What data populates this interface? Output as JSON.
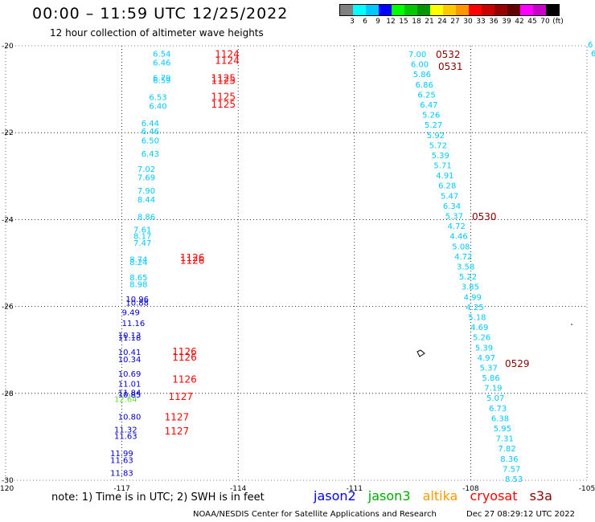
{
  "header": {
    "title": "00:00 – 11:59 UTC 12/25/2022",
    "subtitle": "12 hour collection of altimeter wave heights"
  },
  "legend": {
    "colors": [
      "#808080",
      "#00ffff",
      "#00c8ff",
      "#0000ff",
      "#00ff00",
      "#00c800",
      "#009600",
      "#ffff00",
      "#ffc800",
      "#ff9600",
      "#ff0000",
      "#c80000",
      "#960000",
      "#640000",
      "#ff00ff",
      "#c800c8",
      "#000000"
    ],
    "labels": [
      "3",
      "6",
      "9",
      "12",
      "15",
      "18",
      "21",
      "24",
      "27",
      "30",
      "33",
      "36",
      "39",
      "42",
      "45",
      "70",
      "(ft)"
    ]
  },
  "axes": {
    "lat_labels": [
      {
        "value": "-20",
        "lat": -20
      },
      {
        "value": "-22",
        "lat": -22
      },
      {
        "value": "-24",
        "lat": -24
      },
      {
        "value": "-26",
        "lat": -26
      },
      {
        "value": "-28",
        "lat": -28
      },
      {
        "value": "-30",
        "lat": -30
      }
    ],
    "lon_labels": [
      {
        "value": "-120",
        "lon": -120
      },
      {
        "value": "-117",
        "lon": -117
      },
      {
        "value": "-114",
        "lon": -114
      },
      {
        "value": "-111",
        "lon": -111
      },
      {
        "value": "-108",
        "lon": -108
      },
      {
        "value": "-105",
        "lon": -105
      }
    ]
  },
  "time_color": "#ff0000",
  "time_color_dark": "#8b0000",
  "track_a": [
    {
      "v": "6.54",
      "c": "#00c8ff"
    },
    {
      "v": "6.46",
      "c": "#00c8ff"
    },
    {
      "v": "6.79",
      "c": "#00c8ff"
    },
    {
      "v": "6.59",
      "c": "#00c8ff"
    },
    {
      "v": "6.53",
      "c": "#00c8ff"
    },
    {
      "v": "6.40",
      "c": "#00c8ff"
    },
    {
      "v": "6.44",
      "c": "#00c8ff"
    },
    {
      "v": "6.46",
      "c": "#00c8ff"
    },
    {
      "v": "6.50",
      "c": "#00c8ff"
    },
    {
      "v": "6.43",
      "c": "#00c8ff"
    },
    {
      "v": "7.02",
      "c": "#00c8ff"
    },
    {
      "v": "7.69",
      "c": "#00c8ff"
    },
    {
      "v": "7.90",
      "c": "#00c8ff"
    },
    {
      "v": "8.44",
      "c": "#00c8ff"
    },
    {
      "v": "8.86",
      "c": "#00c8ff"
    },
    {
      "v": "7.61",
      "c": "#00c8ff"
    },
    {
      "v": "8.17",
      "c": "#00c8ff"
    },
    {
      "v": "7.47",
      "c": "#00c8ff"
    },
    {
      "v": "8.74",
      "c": "#00c8ff"
    },
    {
      "v": "8.24",
      "c": "#00c8ff"
    },
    {
      "v": "8.65",
      "c": "#00c8ff"
    },
    {
      "v": "8.98",
      "c": "#00c8ff"
    },
    {
      "v": "10.96",
      "c": "#0000cd"
    },
    {
      "v": "10.88",
      "c": "#0000cd"
    },
    {
      "v": "9.49",
      "c": "#0000cd"
    },
    {
      "v": "11.16",
      "c": "#0000cd"
    },
    {
      "v": "10.13",
      "c": "#0000cd"
    },
    {
      "v": "11.18",
      "c": "#0000cd"
    },
    {
      "v": "10.41",
      "c": "#0000cd"
    },
    {
      "v": "10.34",
      "c": "#0000cd"
    },
    {
      "v": "10.69",
      "c": "#0000cd"
    },
    {
      "v": "11.01",
      "c": "#0000cd"
    },
    {
      "v": "11.84",
      "c": "#0000cd"
    },
    {
      "v": "10.85",
      "c": "#0000cd"
    },
    {
      "v": "12.64",
      "c": "#66dd33"
    },
    {
      "v": "10.80",
      "c": "#0000cd"
    },
    {
      "v": "11.32",
      "c": "#0000cd"
    },
    {
      "v": "11.63",
      "c": "#0000cd"
    },
    {
      "v": "11.99",
      "c": "#0000cd"
    },
    {
      "v": "11.63",
      "c": "#0000cd"
    },
    {
      "v": "11.83",
      "c": "#0000cd"
    }
  ],
  "track_a_times": [
    "1124",
    "1124",
    "1125",
    "1125",
    "1125",
    "1125",
    "1126",
    "1126",
    "1126",
    "1126",
    "1126",
    "1127",
    "1127",
    "1127"
  ],
  "track_b": [
    {
      "v": "7.00"
    },
    {
      "v": "6.00"
    },
    {
      "v": "5.86"
    },
    {
      "v": "6.86"
    },
    {
      "v": "6.25"
    },
    {
      "v": "6.47"
    },
    {
      "v": "5.26"
    },
    {
      "v": "5.27"
    },
    {
      "v": "5.92"
    },
    {
      "v": "5.72"
    },
    {
      "v": "5.39"
    },
    {
      "v": "5.71"
    },
    {
      "v": "4.91"
    },
    {
      "v": "6.28"
    },
    {
      "v": "5.47"
    },
    {
      "v": "6.34"
    },
    {
      "v": "5.37"
    },
    {
      "v": "4.72"
    },
    {
      "v": "4.46"
    },
    {
      "v": "5.08"
    },
    {
      "v": "4.72"
    },
    {
      "v": "3.58"
    },
    {
      "v": "5.22"
    },
    {
      "v": "3.85"
    },
    {
      "v": "4.99"
    },
    {
      "v": "4.25"
    },
    {
      "v": "5.18"
    },
    {
      "v": "4.69"
    },
    {
      "v": "5.26"
    },
    {
      "v": "5.39"
    },
    {
      "v": "4.97"
    },
    {
      "v": "5.37"
    },
    {
      "v": "5.86"
    },
    {
      "v": "7.19"
    },
    {
      "v": "5.07"
    },
    {
      "v": "6.73"
    },
    {
      "v": "6.38"
    },
    {
      "v": "5.95"
    },
    {
      "v": "7.31"
    },
    {
      "v": "7.82"
    },
    {
      "v": "8.36"
    },
    {
      "v": "7.57"
    },
    {
      "v": "8.53"
    }
  ],
  "track_b_color": "#00c8ff",
  "track_b_times": [
    "0532",
    "0531",
    "0530",
    "0529"
  ],
  "edge_values": [
    "6",
    "6"
  ],
  "footer": {
    "note": "note: 1) Time is in UTC; 2) SWH is in feet",
    "satellites": [
      {
        "name": "jason2",
        "color": "#0000ff"
      },
      {
        "name": "jason3",
        "color": "#00aa00"
      },
      {
        "name": "altika",
        "color": "#ff9900"
      },
      {
        "name": "cryosat",
        "color": "#ff0000"
      },
      {
        "name": "s3a",
        "color": "#8b0000"
      }
    ],
    "credit": "NOAA/NESDIS Center for Satellite Applications and Research",
    "timestamp": "Dec 27 08:29:12 UTC 2022"
  }
}
